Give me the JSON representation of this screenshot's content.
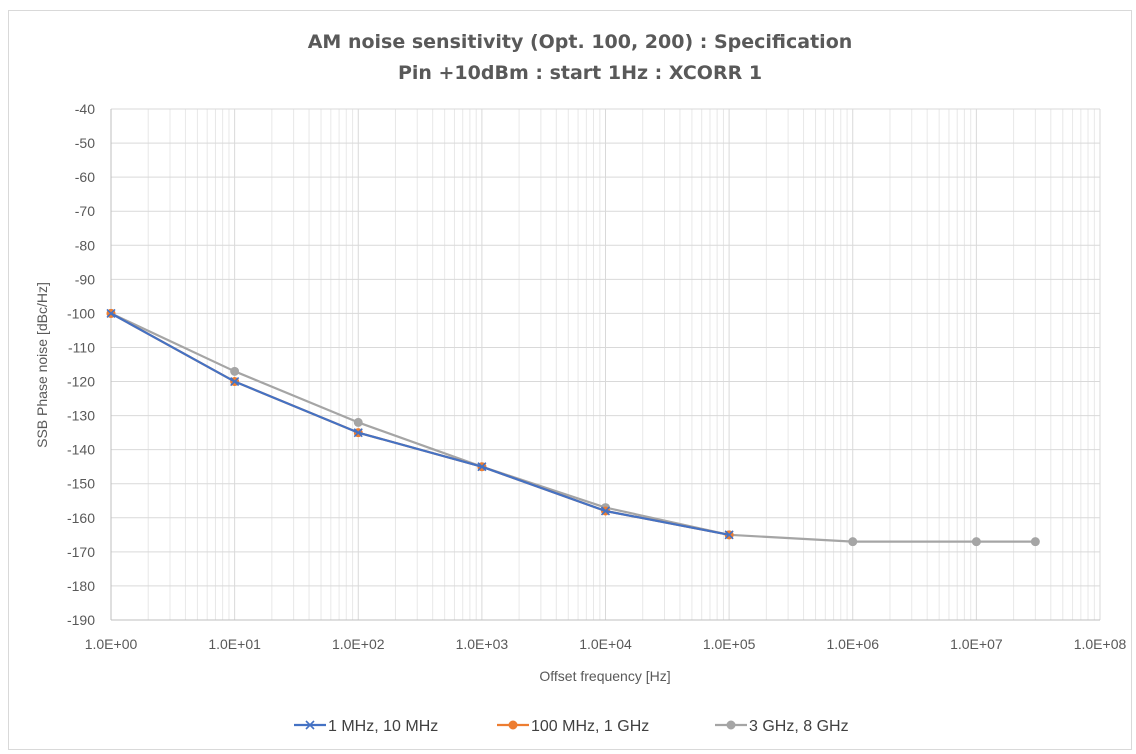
{
  "chart_data": {
    "type": "line",
    "title": "AM noise sensitivity (Opt. 100, 200) : Specification",
    "subtitle": "Pin +10dBm : start 1Hz : XCORR 1",
    "xlabel": "Offset frequency [Hz]",
    "ylabel": "SSB Phase noise [dBc/Hz]",
    "x_scale": "log",
    "xlim": [
      1,
      100000000
    ],
    "ylim": [
      -190,
      -40
    ],
    "y_ticks": [
      "-40",
      "-50",
      "-60",
      "-70",
      "-80",
      "-90",
      "-100",
      "-110",
      "-120",
      "-130",
      "-140",
      "-150",
      "-160",
      "-170",
      "-180",
      "-190"
    ],
    "y_tick_values": [
      -40,
      -50,
      -60,
      -70,
      -80,
      -90,
      -100,
      -110,
      -120,
      -130,
      -140,
      -150,
      -160,
      -170,
      -180,
      -190
    ],
    "x_ticks": [
      "1.0E+00",
      "1.0E+01",
      "1.0E+02",
      "1.0E+03",
      "1.0E+04",
      "1.0E+05",
      "1.0E+06",
      "1.0E+07",
      "1.0E+08"
    ],
    "x_tick_values": [
      1,
      10,
      100,
      1000,
      10000,
      100000,
      1000000,
      10000000,
      100000000
    ],
    "grid": true,
    "minor_grid": true,
    "legend_position": "bottom",
    "series": [
      {
        "name": "1 MHz, 10 MHz",
        "color": "#4472c4",
        "marker": "x",
        "x": [
          1,
          10,
          100,
          1000,
          10000,
          100000
        ],
        "y": [
          -100,
          -120,
          -135,
          -145,
          -158,
          -165
        ]
      },
      {
        "name": "100 MHz, 1 GHz",
        "color": "#ed7d31",
        "marker": "circle",
        "x": [
          1,
          10,
          100,
          1000,
          10000,
          100000
        ],
        "y": [
          -100,
          -120,
          -135,
          -145,
          -158,
          -165
        ]
      },
      {
        "name": "3 GHz, 8 GHz",
        "color": "#a5a5a5",
        "marker": "circle",
        "x": [
          1,
          10,
          100,
          1000,
          10000,
          100000,
          1000000,
          10000000,
          30000000
        ],
        "y": [
          -100,
          -117,
          -132,
          -145,
          -157,
          -165,
          -167,
          -167,
          -167
        ]
      }
    ]
  },
  "colors": {
    "grid": "#d9d9d9",
    "minor_grid": "#e8e8e8",
    "text": "#595959",
    "frame": "#d9d9d9"
  }
}
